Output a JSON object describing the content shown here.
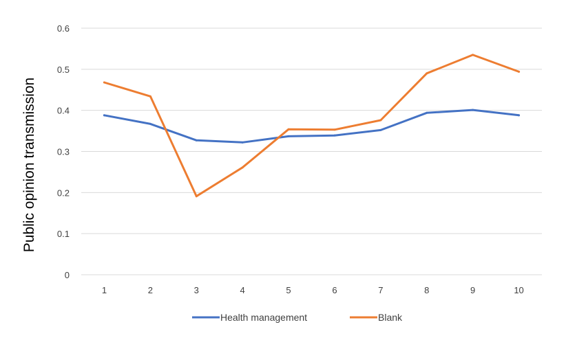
{
  "chart_data": {
    "type": "line",
    "title": "",
    "xlabel": "",
    "ylabel": "Public opinion transmission",
    "x": [
      1,
      2,
      3,
      4,
      5,
      6,
      7,
      8,
      9,
      10
    ],
    "ylim": [
      0,
      0.6
    ],
    "yticks": [
      0,
      0.1,
      0.2,
      0.3,
      0.4,
      0.5,
      0.6
    ],
    "grid": true,
    "legend_position": "bottom",
    "series": [
      {
        "name": "Health management",
        "color": "#4472c4",
        "values": [
          0.388,
          0.367,
          0.327,
          0.322,
          0.337,
          0.339,
          0.352,
          0.394,
          0.401,
          0.388
        ]
      },
      {
        "name": "Blank",
        "color": "#ed7d31",
        "values": [
          0.468,
          0.434,
          0.191,
          0.261,
          0.354,
          0.353,
          0.376,
          0.49,
          0.535,
          0.494
        ]
      }
    ]
  }
}
